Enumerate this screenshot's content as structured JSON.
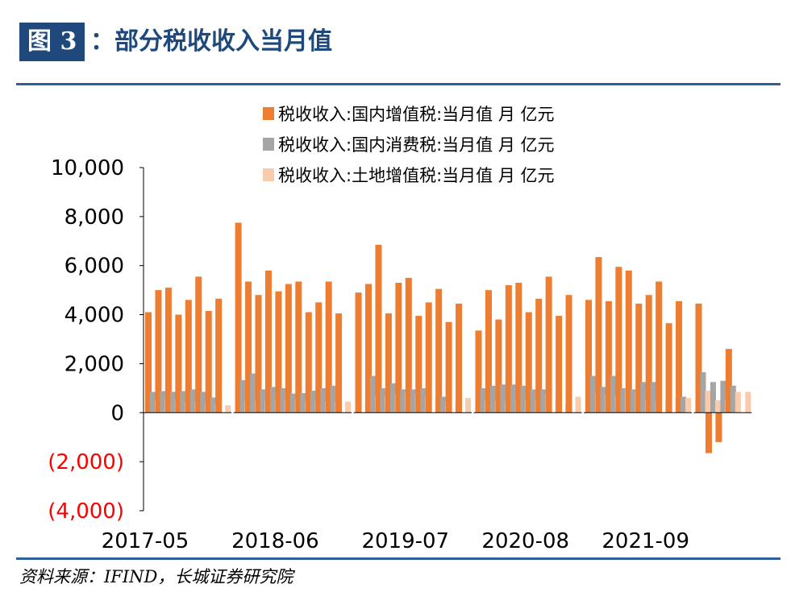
{
  "header": {
    "figure_tag": "图 3",
    "title": "部分税收收入当月值",
    "colon": "："
  },
  "source": "资料来源：IFIND，长城证券研究院",
  "chart_data": {
    "type": "bar",
    "title": "",
    "xlabel": "",
    "ylabel": "",
    "ylim": [
      -4000,
      10000
    ],
    "y_ticks": [
      {
        "value": 10000,
        "label": "10,000",
        "color": "#000000"
      },
      {
        "value": 8000,
        "label": "8,000",
        "color": "#000000"
      },
      {
        "value": 6000,
        "label": "6,000",
        "color": "#000000"
      },
      {
        "value": 4000,
        "label": "4,000",
        "color": "#000000"
      },
      {
        "value": 2000,
        "label": "2,000",
        "color": "#000000"
      },
      {
        "value": 0,
        "label": "0",
        "color": "#000000"
      },
      {
        "value": -2000,
        "label": "(2,000)",
        "color": "#ff0000"
      },
      {
        "value": -4000,
        "label": "(4,000)",
        "color": "#ff0000"
      }
    ],
    "x_tick_labels": [
      "2017-05",
      "2018-06",
      "2019-07",
      "2020-08",
      "2021-09"
    ],
    "x_tick_months": [
      "2017-05",
      "2018-06",
      "2019-07",
      "2020-08",
      "2021-09"
    ],
    "legend_position": "top",
    "grid": false,
    "categories": [
      "2017-05",
      "2017-06",
      "2017-07",
      "2017-08",
      "2017-09",
      "2017-10",
      "2017-11",
      "2017-12",
      "2018-02",
      "2018-03",
      "2018-04",
      "2018-05",
      "2018-06",
      "2018-07",
      "2018-08",
      "2018-09",
      "2018-10",
      "2018-11",
      "2018-12",
      "2019-02",
      "2019-03",
      "2019-04",
      "2019-05",
      "2019-06",
      "2019-07",
      "2019-08",
      "2019-09",
      "2019-10",
      "2019-11",
      "2019-12",
      "2020-03",
      "2020-04",
      "2020-05",
      "2020-06",
      "2020-07",
      "2020-08",
      "2020-09",
      "2020-10",
      "2020-11",
      "2020-12",
      "2021-03",
      "2021-04",
      "2021-05",
      "2021-06",
      "2021-07",
      "2021-08",
      "2021-09",
      "2021-10",
      "2021-11",
      "2021-12",
      "2022-03",
      "2022-04",
      "2022-05",
      "2022-06",
      "2022-07"
    ],
    "series": [
      {
        "name": "税收收入:国内增值税:当月值 月 亿元",
        "color": "#ed7d31",
        "values": [
          4100,
          5000,
          5100,
          4000,
          4600,
          5550,
          4150,
          4650,
          7750,
          5350,
          4800,
          5800,
          4950,
          5250,
          5350,
          4100,
          4500,
          5350,
          4050,
          4900,
          5250,
          6850,
          4050,
          5300,
          5500,
          3950,
          4500,
          5050,
          3700,
          4450,
          3350,
          5000,
          3800,
          5200,
          5300,
          4100,
          4650,
          5550,
          3950,
          4800,
          4600,
          6350,
          4550,
          5950,
          5800,
          4450,
          4800,
          5350,
          3650,
          4550,
          4450,
          -1650,
          -1200,
          2600,
          null
        ]
      },
      {
        "name": "税收收入:国内消费税:当月值 月 亿元",
        "color": "#a5a5a5",
        "values": [
          850,
          880,
          850,
          880,
          950,
          850,
          620,
          null,
          1330,
          1600,
          950,
          1050,
          1000,
          780,
          800,
          900,
          1000,
          1100,
          null,
          null,
          1500,
          1000,
          1200,
          950,
          950,
          1000,
          null,
          650,
          null,
          null,
          1000,
          1100,
          1150,
          1150,
          1100,
          950,
          950,
          null,
          null,
          null,
          1500,
          1050,
          1500,
          1000,
          950,
          1250,
          1250,
          null,
          null,
          650,
          1650,
          1250,
          1300,
          1100,
          null
        ]
      },
      {
        "name": "税收收入:土地增值税:当月值 月 亿元",
        "color": "#f8cbad",
        "values": [
          500,
          550,
          500,
          450,
          450,
          400,
          350,
          300,
          500,
          500,
          500,
          550,
          550,
          550,
          500,
          500,
          450,
          450,
          450,
          500,
          650,
          650,
          750,
          850,
          800,
          650,
          650,
          450,
          450,
          600,
          500,
          500,
          500,
          550,
          550,
          550,
          750,
          550,
          350,
          650,
          800,
          750,
          700,
          950,
          850,
          550,
          500,
          550,
          600,
          600,
          900,
          500,
          550,
          850,
          850
        ]
      }
    ]
  }
}
